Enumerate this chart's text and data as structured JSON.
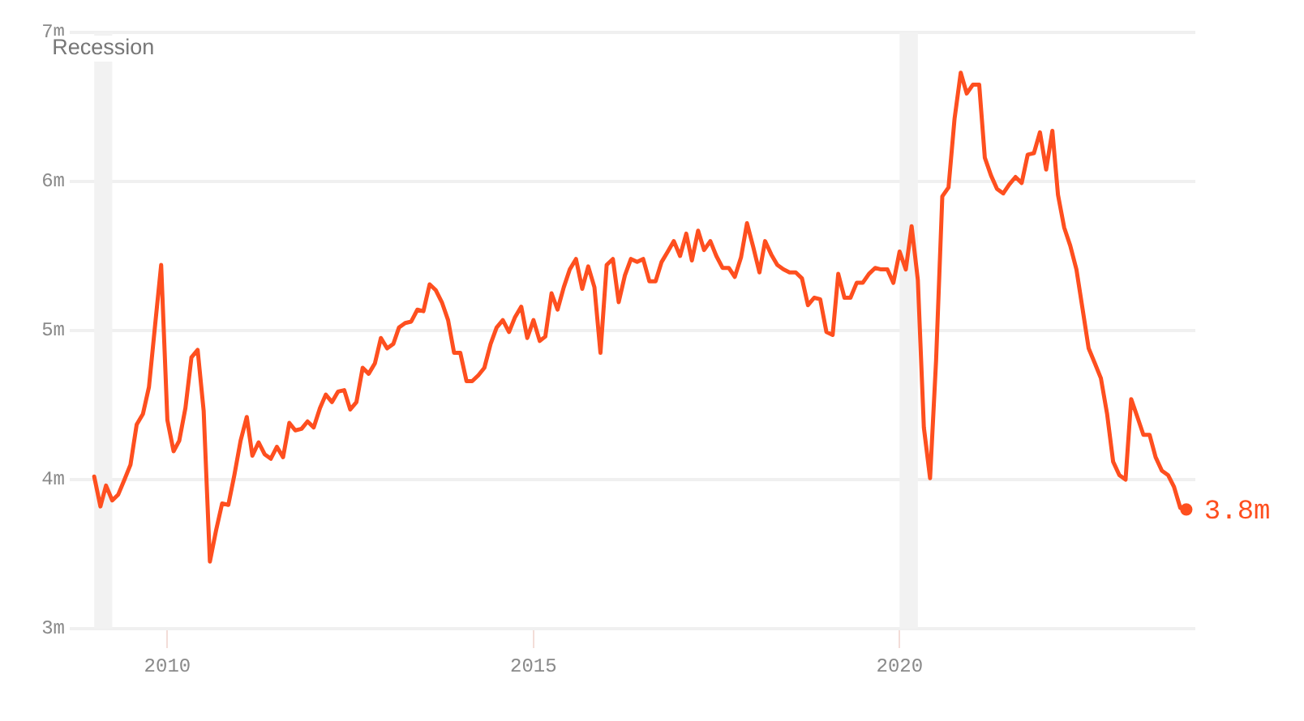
{
  "chart_data": {
    "type": "line",
    "x": [
      "2009-01",
      "2009-02",
      "2009-03",
      "2009-04",
      "2009-05",
      "2009-06",
      "2009-07",
      "2009-08",
      "2009-09",
      "2009-10",
      "2009-11",
      "2009-12",
      "2010-01",
      "2010-02",
      "2010-03",
      "2010-04",
      "2010-05",
      "2010-06",
      "2010-07",
      "2010-08",
      "2010-09",
      "2010-10",
      "2010-11",
      "2010-12",
      "2011-01",
      "2011-02",
      "2011-03",
      "2011-04",
      "2011-05",
      "2011-06",
      "2011-07",
      "2011-08",
      "2011-09",
      "2011-10",
      "2011-11",
      "2011-12",
      "2012-01",
      "2012-02",
      "2012-03",
      "2012-04",
      "2012-05",
      "2012-06",
      "2012-07",
      "2012-08",
      "2012-09",
      "2012-10",
      "2012-11",
      "2012-12",
      "2013-01",
      "2013-02",
      "2013-03",
      "2013-04",
      "2013-05",
      "2013-06",
      "2013-07",
      "2013-08",
      "2013-09",
      "2013-10",
      "2013-11",
      "2013-12",
      "2014-01",
      "2014-02",
      "2014-03",
      "2014-04",
      "2014-05",
      "2014-06",
      "2014-07",
      "2014-08",
      "2014-09",
      "2014-10",
      "2014-11",
      "2014-12",
      "2015-01",
      "2015-02",
      "2015-03",
      "2015-04",
      "2015-05",
      "2015-06",
      "2015-07",
      "2015-08",
      "2015-09",
      "2015-10",
      "2015-11",
      "2015-12",
      "2016-01",
      "2016-02",
      "2016-03",
      "2016-04",
      "2016-05",
      "2016-06",
      "2016-07",
      "2016-08",
      "2016-09",
      "2016-10",
      "2016-11",
      "2016-12",
      "2017-01",
      "2017-02",
      "2017-03",
      "2017-04",
      "2017-05",
      "2017-06",
      "2017-07",
      "2017-08",
      "2017-09",
      "2017-10",
      "2017-11",
      "2017-12",
      "2018-01",
      "2018-02",
      "2018-03",
      "2018-04",
      "2018-05",
      "2018-06",
      "2018-07",
      "2018-08",
      "2018-09",
      "2018-10",
      "2018-11",
      "2018-12",
      "2019-01",
      "2019-02",
      "2019-03",
      "2019-04",
      "2019-05",
      "2019-06",
      "2019-07",
      "2019-08",
      "2019-09",
      "2019-10",
      "2019-11",
      "2019-12",
      "2020-01",
      "2020-02",
      "2020-03",
      "2020-04",
      "2020-05",
      "2020-06",
      "2020-07",
      "2020-08",
      "2020-09",
      "2020-10",
      "2020-11",
      "2020-12",
      "2021-01",
      "2021-02",
      "2021-03",
      "2021-04",
      "2021-05",
      "2021-06",
      "2021-07",
      "2021-08",
      "2021-09",
      "2021-10",
      "2021-11",
      "2021-12",
      "2022-01",
      "2022-02",
      "2022-03",
      "2022-04",
      "2022-05",
      "2022-06",
      "2022-07",
      "2022-08",
      "2022-09",
      "2022-10",
      "2022-11",
      "2022-12",
      "2023-01",
      "2023-02",
      "2023-03",
      "2023-04",
      "2023-05",
      "2023-06",
      "2023-07",
      "2023-08",
      "2023-09",
      "2023-10",
      "2023-11",
      "2023-12"
    ],
    "series": [
      {
        "color": "#fe4f1f",
        "marker": "none",
        "values": [
          4.02,
          3.82,
          3.96,
          3.86,
          3.9,
          4.0,
          4.1,
          4.37,
          4.44,
          4.62,
          5.04,
          5.44,
          4.4,
          4.19,
          4.26,
          4.48,
          4.82,
          4.87,
          4.46,
          3.45,
          3.66,
          3.84,
          3.83,
          4.03,
          4.26,
          4.42,
          4.16,
          4.25,
          4.17,
          4.14,
          4.22,
          4.15,
          4.38,
          4.33,
          4.34,
          4.39,
          4.35,
          4.48,
          4.57,
          4.52,
          4.59,
          4.6,
          4.47,
          4.52,
          4.75,
          4.71,
          4.78,
          4.95,
          4.88,
          4.91,
          5.02,
          5.05,
          5.06,
          5.14,
          5.13,
          5.31,
          5.27,
          5.19,
          5.07,
          4.85,
          4.85,
          4.66,
          4.66,
          4.7,
          4.75,
          4.91,
          5.02,
          5.07,
          4.99,
          5.09,
          5.16,
          4.95,
          5.07,
          4.93,
          4.96,
          5.25,
          5.14,
          5.29,
          5.41,
          5.48,
          5.28,
          5.43,
          5.29,
          4.85,
          5.44,
          5.48,
          5.19,
          5.37,
          5.48,
          5.46,
          5.48,
          5.33,
          5.33,
          5.46,
          5.53,
          5.6,
          5.5,
          5.65,
          5.47,
          5.67,
          5.54,
          5.6,
          5.5,
          5.42,
          5.42,
          5.36,
          5.49,
          5.72,
          5.56,
          5.39,
          5.6,
          5.51,
          5.44,
          5.41,
          5.39,
          5.39,
          5.35,
          5.17,
          5.22,
          5.21,
          4.99,
          4.97,
          5.38,
          5.22,
          5.22,
          5.32,
          5.32,
          5.38,
          5.42,
          5.41,
          5.41,
          5.32,
          5.53,
          5.41,
          5.7,
          5.34,
          4.35,
          4.01,
          4.8,
          5.9,
          5.96,
          6.42,
          6.73,
          6.59,
          6.65,
          6.65,
          6.16,
          6.04,
          5.95,
          5.92,
          5.98,
          6.03,
          5.99,
          6.18,
          6.19,
          6.33,
          6.08,
          6.34,
          5.91,
          5.69,
          5.57,
          5.41,
          5.15,
          4.88,
          4.78,
          4.68,
          4.44,
          4.12,
          4.03,
          4.0,
          4.54,
          4.42,
          4.3,
          4.3,
          4.15,
          4.06,
          4.03,
          3.95,
          3.81,
          3.8
        ]
      },
      {
        "type": "scatter",
        "color": "#fe4f1f",
        "marker": "circle",
        "x": [
          "2023-12"
        ],
        "values": [
          3.8
        ],
        "value_labels": [
          "3.8m"
        ]
      }
    ],
    "xlim": [
      "2008-09",
      "2024-01-15"
    ],
    "xticks": [
      "2010",
      "2015",
      "2020"
    ],
    "ylim": [
      3,
      7
    ],
    "yticks": [
      {
        "value": 3,
        "label": "3m"
      },
      {
        "value": 4,
        "label": "4m"
      },
      {
        "value": 5,
        "label": "5m"
      },
      {
        "value": 6,
        "label": "6m"
      },
      {
        "value": 7,
        "label": "7m"
      }
    ],
    "bands": [
      {
        "axis": "x",
        "from": "2009-01",
        "to": "2009-04",
        "label": "Recession",
        "color": "#f2f2f2"
      },
      {
        "axis": "x",
        "from": "2020-01",
        "to": "2020-04",
        "color": "#f2f2f2"
      }
    ],
    "grid": "y",
    "legend": false
  }
}
